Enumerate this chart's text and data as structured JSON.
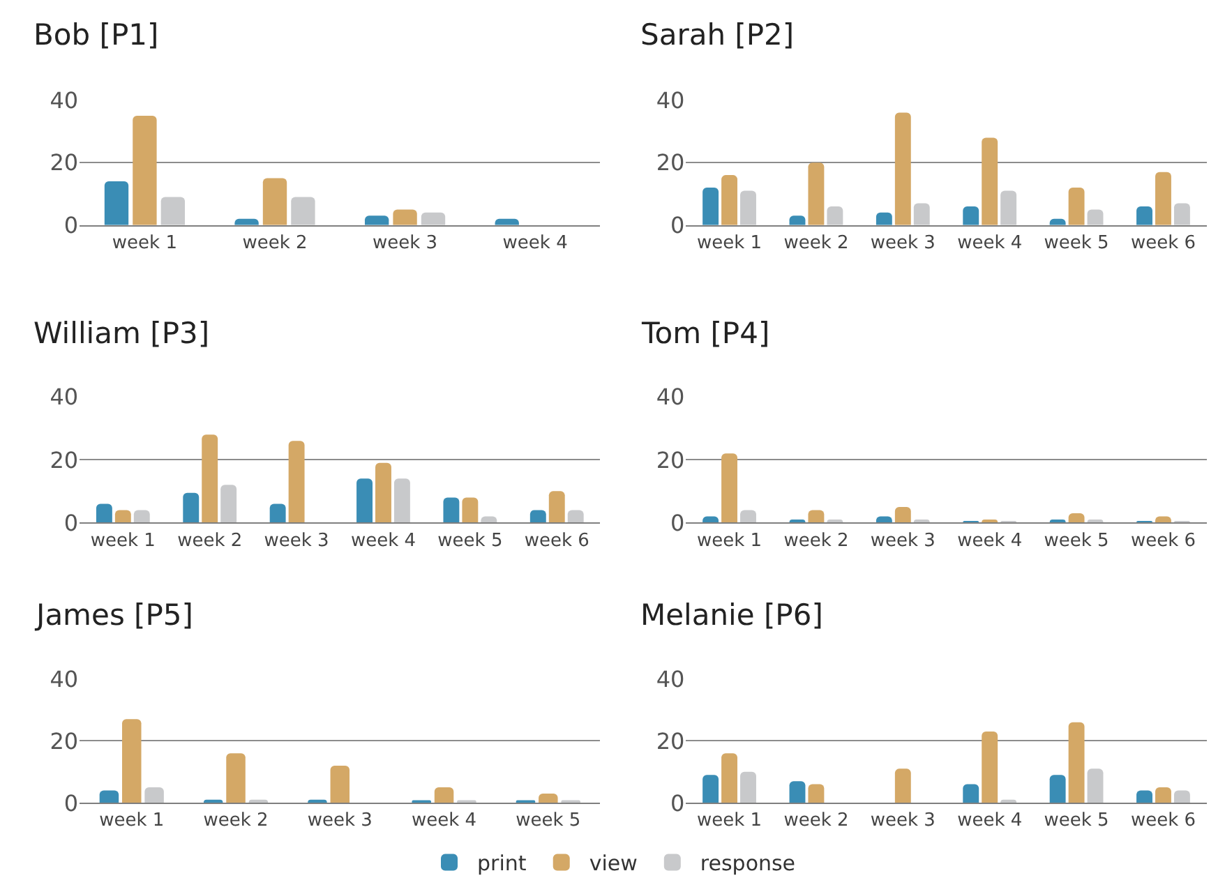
{
  "chart_data": [
    {
      "type": "bar",
      "title": "Bob [P1]",
      "categories": [
        "week 1",
        "week 2",
        "week 3",
        "week 4"
      ],
      "ylim": [
        0,
        40
      ],
      "yticks": [
        0,
        20,
        40
      ],
      "grid": "y",
      "legend": "bottom",
      "series": [
        {
          "name": "print",
          "color": "#3a8db5",
          "values": [
            14,
            2,
            3,
            2
          ]
        },
        {
          "name": "view",
          "color": "#d4a866",
          "values": [
            35,
            15,
            5,
            null
          ]
        },
        {
          "name": "response",
          "color": "#c8c9cb",
          "values": [
            9,
            9,
            4,
            null
          ]
        }
      ]
    },
    {
      "type": "bar",
      "title": "Sarah [P2]",
      "categories": [
        "week 1",
        "week 2",
        "week 3",
        "week 4",
        "week 5",
        "week 6"
      ],
      "ylim": [
        0,
        40
      ],
      "yticks": [
        0,
        20,
        40
      ],
      "grid": "y",
      "series": [
        {
          "name": "print",
          "color": "#3a8db5",
          "values": [
            12,
            3,
            4,
            6,
            2,
            6
          ]
        },
        {
          "name": "view",
          "color": "#d4a866",
          "values": [
            16,
            20,
            36,
            28,
            12,
            17
          ]
        },
        {
          "name": "response",
          "color": "#c8c9cb",
          "values": [
            11,
            6,
            7,
            11,
            5,
            7
          ]
        }
      ]
    },
    {
      "type": "bar",
      "title": "William [P3]",
      "categories": [
        "week 1",
        "week 2",
        "week 3",
        "week 4",
        "week 5",
        "week 6"
      ],
      "ylim": [
        0,
        40
      ],
      "yticks": [
        0,
        20,
        40
      ],
      "grid": "y",
      "series": [
        {
          "name": "print",
          "color": "#3a8db5",
          "values": [
            6,
            9.5,
            6,
            14,
            8,
            4
          ]
        },
        {
          "name": "view",
          "color": "#d4a866",
          "values": [
            4,
            28,
            26,
            19,
            8,
            10
          ]
        },
        {
          "name": "response",
          "color": "#c8c9cb",
          "values": [
            4,
            12,
            null,
            14,
            2,
            4
          ]
        }
      ]
    },
    {
      "type": "bar",
      "title": "Tom [P4]",
      "categories": [
        "week 1",
        "week 2",
        "week 3",
        "week 4",
        "week 5",
        "week 6"
      ],
      "ylim": [
        0,
        40
      ],
      "yticks": [
        0,
        20,
        40
      ],
      "grid": "y",
      "series": [
        {
          "name": "print",
          "color": "#3a8db5",
          "values": [
            2,
            1,
            2,
            0.5,
            1,
            0.5
          ]
        },
        {
          "name": "view",
          "color": "#d4a866",
          "values": [
            22,
            4,
            5,
            1,
            3,
            2
          ]
        },
        {
          "name": "response",
          "color": "#c8c9cb",
          "values": [
            4,
            1,
            1,
            0.5,
            1,
            0.5
          ]
        }
      ]
    },
    {
      "type": "bar",
      "title": "James [P5]",
      "categories": [
        "week 1",
        "week 2",
        "week 3",
        "week 4",
        "week 5"
      ],
      "ylim": [
        0,
        40
      ],
      "yticks": [
        0,
        20,
        40
      ],
      "grid": "y",
      "series": [
        {
          "name": "print",
          "color": "#3a8db5",
          "values": [
            4,
            1,
            1,
            0.5,
            0.5
          ]
        },
        {
          "name": "view",
          "color": "#d4a866",
          "values": [
            27,
            16,
            12,
            5,
            3
          ]
        },
        {
          "name": "response",
          "color": "#c8c9cb",
          "values": [
            5,
            1,
            null,
            0.5,
            0.5
          ]
        }
      ]
    },
    {
      "type": "bar",
      "title": "Melanie [P6]",
      "categories": [
        "week 1",
        "week 2",
        "week 3",
        "week 4",
        "week 5",
        "week 6"
      ],
      "ylim": [
        0,
        40
      ],
      "yticks": [
        0,
        20,
        40
      ],
      "grid": "y",
      "series": [
        {
          "name": "print",
          "color": "#3a8db5",
          "values": [
            9,
            7,
            null,
            6,
            9,
            4
          ]
        },
        {
          "name": "view",
          "color": "#d4a866",
          "values": [
            16,
            6,
            11,
            23,
            26,
            5
          ]
        },
        {
          "name": "response",
          "color": "#c8c9cb",
          "values": [
            10,
            null,
            null,
            1,
            11,
            4
          ]
        }
      ]
    }
  ]
}
